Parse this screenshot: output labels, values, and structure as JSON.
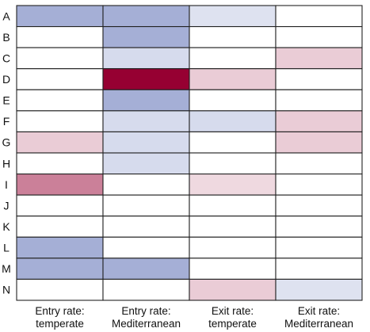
{
  "chart_data": {
    "type": "heatmap",
    "title": "",
    "xlabel": "",
    "ylabel": "",
    "rows": [
      "A",
      "B",
      "C",
      "D",
      "E",
      "F",
      "G",
      "H",
      "I",
      "J",
      "K",
      "L",
      "M",
      "N"
    ],
    "columns": [
      [
        "Entry rate:",
        "temperate"
      ],
      [
        "Entry rate:",
        "Mediterranean"
      ],
      [
        "Exit rate:",
        "temperate"
      ],
      [
        "Exit rate:",
        "Mediterranean"
      ]
    ],
    "values": [
      [
        -0.55,
        -0.55,
        -0.2,
        0
      ],
      [
        0,
        -0.55,
        0,
        0
      ],
      [
        0,
        -0.25,
        0,
        0.2
      ],
      [
        0,
        1.0,
        0.2,
        0
      ],
      [
        0,
        -0.55,
        0,
        0
      ],
      [
        0,
        -0.25,
        -0.25,
        0.2
      ],
      [
        0.2,
        -0.25,
        0,
        0.2
      ],
      [
        0,
        -0.25,
        0,
        0
      ],
      [
        0.5,
        0,
        0.15,
        0
      ],
      [
        0,
        0,
        0,
        0
      ],
      [
        0,
        0,
        0,
        0
      ],
      [
        -0.55,
        0,
        0,
        0
      ],
      [
        -0.55,
        -0.55,
        0,
        0
      ],
      [
        0,
        0,
        0.2,
        -0.2
      ]
    ],
    "scale_note": "negative = blue, positive = red, 0 = white",
    "colors": {
      "negative": "#5c6db5",
      "positive": "#960032",
      "neutral": "#ffffff",
      "grid": "#222222"
    }
  }
}
